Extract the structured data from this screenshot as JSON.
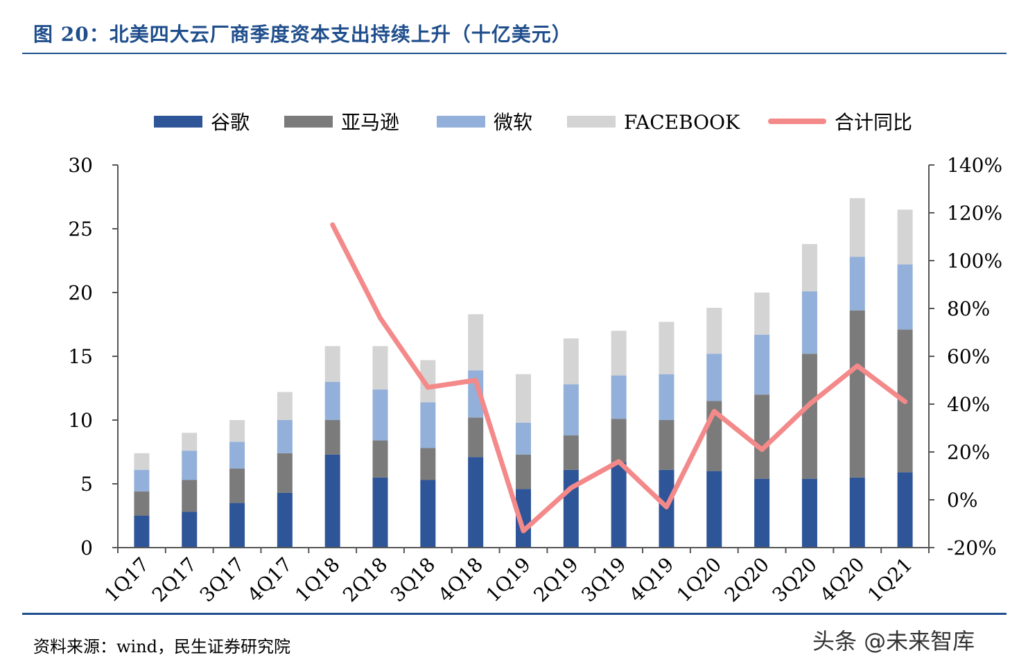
{
  "title": "图 20：北美四大云厂商季度资本支出持续上升（十亿美元）",
  "source": "资料来源：wind，民生证券研究院",
  "watermark": "头条 @未来智库",
  "chart_data": {
    "type": "bar",
    "stacked": true,
    "categories": [
      "1Q17",
      "2Q17",
      "3Q17",
      "4Q17",
      "1Q18",
      "2Q18",
      "3Q18",
      "4Q18",
      "1Q19",
      "2Q19",
      "3Q19",
      "4Q19",
      "1Q20",
      "2Q20",
      "3Q20",
      "4Q20",
      "1Q21"
    ],
    "series": [
      {
        "name": "谷歌",
        "color": "#2e5597",
        "values": [
          2.5,
          2.8,
          3.5,
          4.3,
          7.3,
          5.5,
          5.3,
          7.1,
          4.6,
          6.1,
          6.7,
          6.1,
          6.0,
          5.4,
          5.4,
          5.5,
          5.9
        ]
      },
      {
        "name": "亚马逊",
        "color": "#7b7b7b",
        "values": [
          1.9,
          2.5,
          2.7,
          3.1,
          2.7,
          2.9,
          2.5,
          3.1,
          2.7,
          2.7,
          3.4,
          3.9,
          5.5,
          6.6,
          9.8,
          13.1,
          11.2
        ]
      },
      {
        "name": "微软",
        "color": "#93b0da",
        "values": [
          1.7,
          2.3,
          2.1,
          2.6,
          3.0,
          4.0,
          3.6,
          3.7,
          2.5,
          4.0,
          3.4,
          3.6,
          3.7,
          4.7,
          4.9,
          4.2,
          5.1
        ]
      },
      {
        "name": "FACEBOOK",
        "color": "#d4d4d4",
        "values": [
          1.3,
          1.4,
          1.7,
          2.2,
          2.8,
          3.4,
          3.3,
          4.4,
          3.8,
          3.6,
          3.5,
          4.1,
          3.6,
          3.3,
          3.7,
          4.6,
          4.3
        ]
      }
    ],
    "line": {
      "name": "合计同比",
      "color": "#f4898a",
      "start_index": 4,
      "values": [
        115,
        76,
        47,
        50,
        -13,
        5,
        16,
        -3,
        37,
        21,
        40,
        56,
        41
      ]
    },
    "ylim": [
      0,
      30
    ],
    "yticks": [
      0,
      5,
      10,
      15,
      20,
      25,
      30
    ],
    "y2lim": [
      -20,
      140
    ],
    "y2ticks": [
      "-20%",
      "0%",
      "20%",
      "40%",
      "60%",
      "80%",
      "100%",
      "120%",
      "140%"
    ],
    "legend": "top",
    "grid": false
  }
}
